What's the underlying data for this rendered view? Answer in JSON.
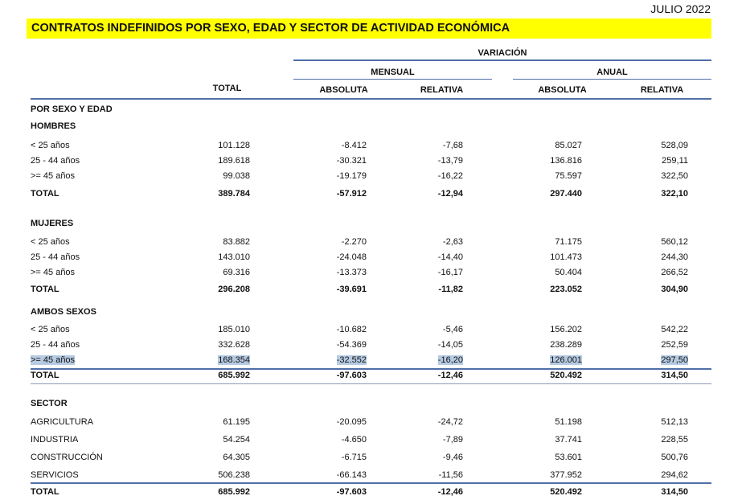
{
  "date": "JULIO 2022",
  "title": "CONTRATOS INDEFINIDOS POR SEXO, EDAD Y SECTOR DE ACTIVIDAD ECONÓMICA",
  "header": {
    "variacion": "VARIACIÓN",
    "mensual": "MENSUAL",
    "anual": "ANUAL",
    "total": "TOTAL",
    "absoluta_m": "ABSOLUTA",
    "relativa_m": "RELATIVA",
    "absoluta_a": "ABSOLUTA",
    "relativa_a": "RELATIVA"
  },
  "rows": [
    {
      "label": "POR SEXO Y EDAD",
      "type": "heading"
    },
    {
      "label": "HOMBRES",
      "type": "heading"
    },
    {
      "label": "< 25 años",
      "values": [
        "101.128",
        "-8.412",
        "-7,68",
        "85.027",
        "528,09"
      ]
    },
    {
      "label": "25 - 44 años",
      "values": [
        "189.618",
        "-30.321",
        "-13,79",
        "136.816",
        "259,11"
      ]
    },
    {
      "label": ">= 45 años",
      "values": [
        "99.038",
        "-19.179",
        "-16,22",
        "75.597",
        "322,50"
      ]
    },
    {
      "label": "TOTAL",
      "type": "total",
      "values": [
        "389.784",
        "-57.912",
        "-12,94",
        "297.440",
        "322,10"
      ]
    },
    {
      "label": "MUJERES",
      "type": "heading"
    },
    {
      "label": "< 25 años",
      "values": [
        "83.882",
        "-2.270",
        "-2,63",
        "71.175",
        "560,12"
      ]
    },
    {
      "label": "25 - 44 años",
      "values": [
        "143.010",
        "-24.048",
        "-14,40",
        "101.473",
        "244,30"
      ]
    },
    {
      "label": ">= 45 años",
      "values": [
        "69.316",
        "-13.373",
        "-16,17",
        "50.404",
        "266,52"
      ]
    },
    {
      "label": "TOTAL",
      "type": "total",
      "values": [
        "296.208",
        "-39.691",
        "-11,82",
        "223.052",
        "304,90"
      ]
    },
    {
      "label": "AMBOS SEXOS",
      "type": "heading"
    },
    {
      "label": "< 25 años",
      "values": [
        "185.010",
        "-10.682",
        "-5,46",
        "156.202",
        "542,22"
      ]
    },
    {
      "label": "25 - 44 años",
      "values": [
        "332.628",
        "-54.369",
        "-14,05",
        "238.289",
        "252,59"
      ]
    },
    {
      "label": ">= 45 años",
      "selected": true,
      "values": [
        "168.354",
        "-32.552",
        "-16,20",
        "126.001",
        "297,50"
      ]
    },
    {
      "label": "TOTAL",
      "type": "total",
      "values": [
        "685.992",
        "-97.603",
        "-12,46",
        "520.492",
        "314,50"
      ]
    },
    {
      "label": "SECTOR",
      "type": "heading"
    },
    {
      "label": "AGRICULTURA",
      "values": [
        "61.195",
        "-20.095",
        "-24,72",
        "51.198",
        "512,13"
      ]
    },
    {
      "label": "INDUSTRIA",
      "values": [
        "54.254",
        "-4.650",
        "-7,89",
        "37.741",
        "228,55"
      ]
    },
    {
      "label": "CONSTRUCCIÓN",
      "values": [
        "64.305",
        "-6.715",
        "-9,46",
        "53.601",
        "500,76"
      ]
    },
    {
      "label": "SERVICIOS",
      "values": [
        "506.238",
        "-66.143",
        "-11,56",
        "377.952",
        "294,62"
      ]
    },
    {
      "label": "TOTAL",
      "type": "total",
      "values": [
        "685.992",
        "-97.603",
        "-12,46",
        "520.492",
        "314,50"
      ]
    }
  ],
  "colors": {
    "title_bg": "#ffff00",
    "rule": "#4f6fa8",
    "highlight": "#b6cbe3"
  }
}
